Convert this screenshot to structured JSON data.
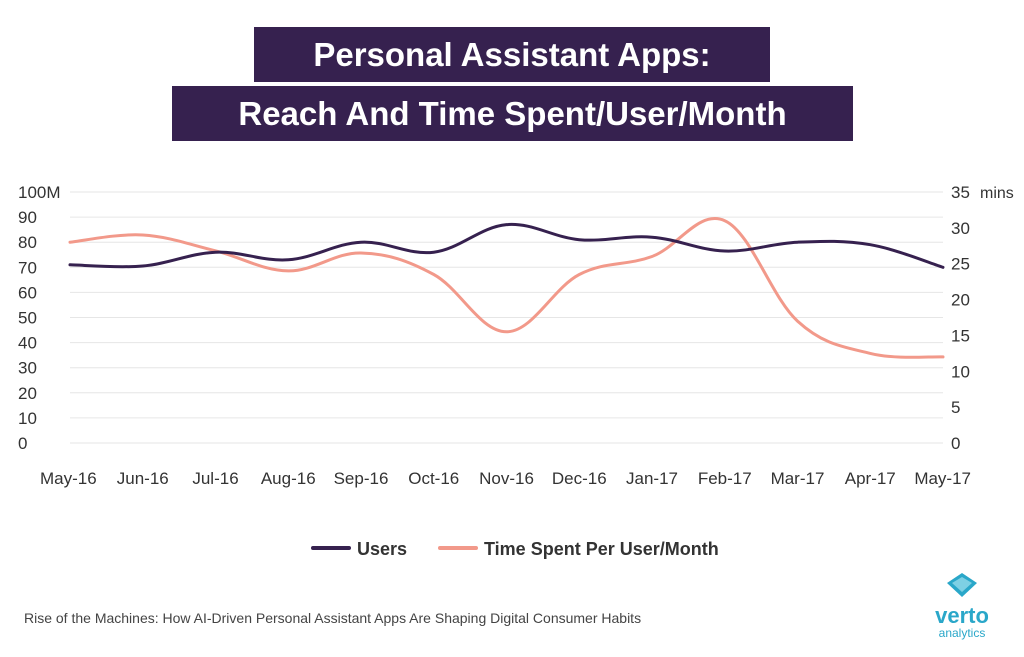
{
  "title_line1": "Personal Assistant Apps:",
  "title_line2": "Reach And Time Spent/User/Month",
  "source": "Rise of the Machines: How AI-Driven Personal Assistant Apps Are Shaping Digital Consumer Habits",
  "logo": {
    "name": "verto",
    "tagline": "analytics",
    "icon": "diamond-logo-icon",
    "color": "#2aa7c9"
  },
  "chart_data": {
    "type": "line",
    "title": "Personal Assistant Apps: Reach And Time Spent/User/Month",
    "categories": [
      "May-16",
      "Jun-16",
      "Jul-16",
      "Aug-16",
      "Sep-16",
      "Oct-16",
      "Nov-16",
      "Dec-16",
      "Jan-17",
      "Feb-17",
      "Mar-17",
      "Apr-17",
      "May-17"
    ],
    "y_left": {
      "ticks": [
        "0",
        "10",
        "20",
        "30",
        "40",
        "50",
        "60",
        "70",
        "80",
        "90",
        "100M"
      ],
      "ylim": [
        0,
        100
      ]
    },
    "y_right": {
      "ticks": [
        "0",
        "5",
        "10",
        "15",
        "20",
        "25",
        "30",
        "35"
      ],
      "unit": "mins",
      "ylim": [
        0,
        35
      ]
    },
    "grid": true,
    "legend_position": "bottom-center",
    "series": [
      {
        "name": "Users",
        "axis": "left",
        "color": "#36214f",
        "values": [
          71,
          70.5,
          76,
          73,
          80,
          76,
          87,
          81,
          82,
          76.5,
          80,
          79,
          70
        ]
      },
      {
        "name": "Time Spent Per User/Month",
        "axis": "right",
        "color": "#f2998a",
        "values": [
          28,
          29,
          26.8,
          24,
          26.5,
          23.5,
          15.5,
          23.5,
          26,
          31,
          17,
          12.5,
          12
        ]
      }
    ]
  }
}
